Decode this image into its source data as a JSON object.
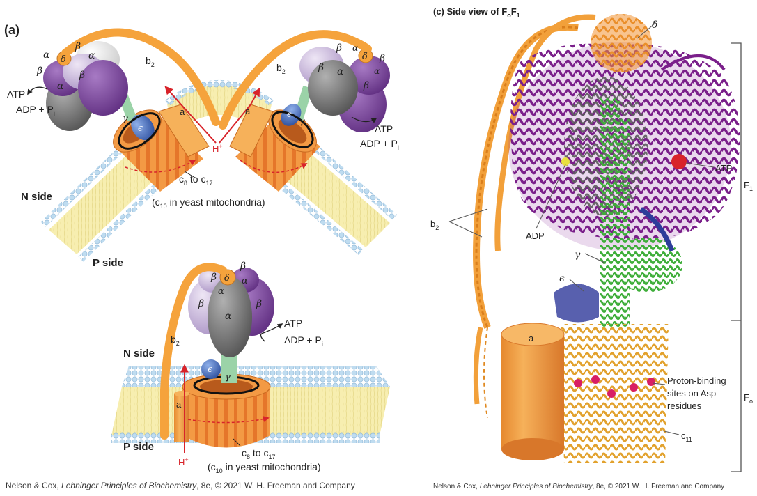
{
  "panel_a": {
    "label": "(a)",
    "n_side": "N side",
    "p_side": "P side",
    "atp": "ATP",
    "adp": "ADP + P",
    "adp_sub": "i",
    "h_plus": "H",
    "h_sup": "+",
    "c_ring": "c",
    "c_sub1": "8",
    "c_to": " to c",
    "c_sub2": "17",
    "yeast_open": "(c",
    "yeast_sub": "10",
    "yeast_rest": " in yeast mitochondria)",
    "b": "b",
    "b_sub": "2",
    "a": "a",
    "alpha": "α",
    "beta": "β",
    "gamma": "γ",
    "delta": "δ",
    "epsilon": "ϵ"
  },
  "panel_c": {
    "label_prefix": "(c)  Side view of F",
    "label_sub1": "o",
    "label_mid": "F",
    "label_sub2": "1",
    "delta": "δ",
    "atp": "ATP",
    "adp": "ADP",
    "gamma": "γ",
    "epsilon": "ϵ",
    "b": "b",
    "b_sub": "2",
    "a": "a",
    "f1": "F",
    "f1_sub": "1",
    "fo": "F",
    "fo_sub": "o",
    "proton_line1": "Proton-binding",
    "proton_line2": "sites on Asp",
    "proton_line3": "residues",
    "c11": "c",
    "c11_sub": "11"
  },
  "credits": {
    "left_pre": "Nelson & Cox, ",
    "left_book": "Lehninger Principles of Biochemistry",
    "left_post": ", 8e, © 2021 W. H. Freeman and Company",
    "right_pre": "Nelson & Cox, ",
    "right_book": "Lehninger Principles of Biochemistry",
    "right_post": ", 8e, © 2021 W. H. Freeman and Company"
  },
  "colors": {
    "orange": "#f5a33c",
    "orange_dark": "#d9772a",
    "purple": "#7a3f98",
    "lavender": "#c9b6dc",
    "gray": "#7d7d7d",
    "green": "#57c24a",
    "blue": "#3b5fb0",
    "membrane": "#f7eeb0",
    "lipid_head": "#bfdcf0",
    "red": "#d8232a"
  }
}
